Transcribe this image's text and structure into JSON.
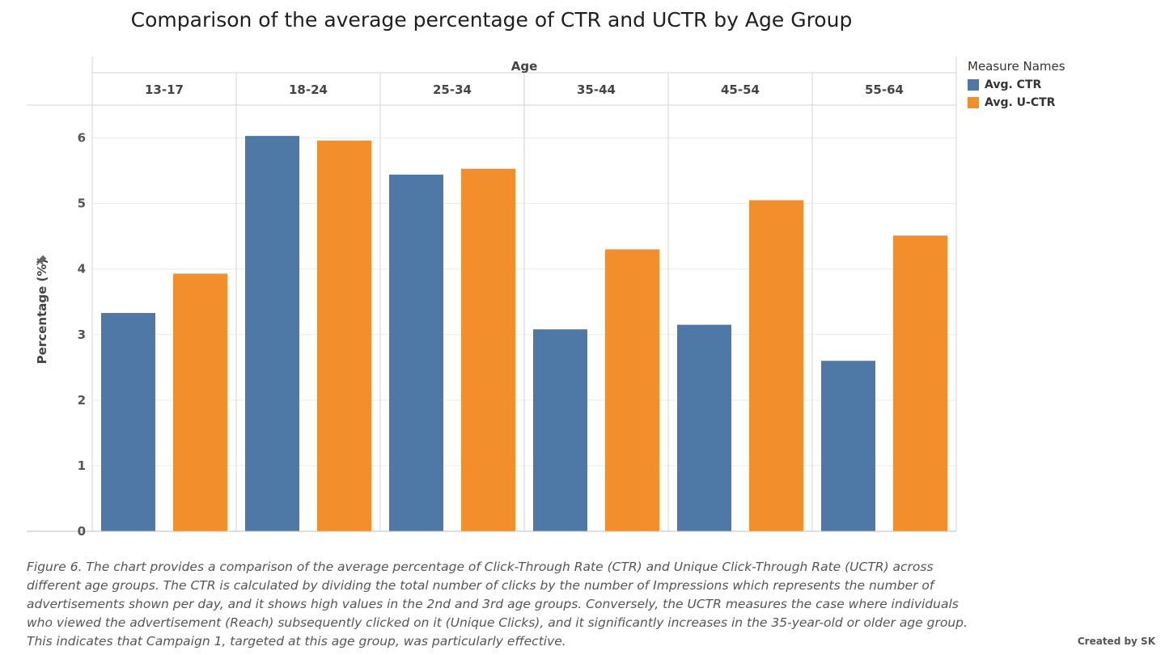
{
  "chart_data": {
    "type": "bar",
    "title": "Comparison of the average percentage of CTR and UCTR by Age Group",
    "column_header": "Age",
    "categories": [
      "13-17",
      "18-24",
      "25-34",
      "35-44",
      "45-54",
      "55-64"
    ],
    "series": [
      {
        "name": "Avg. CTR",
        "color": "#4e79a7",
        "values": [
          3.33,
          6.03,
          5.44,
          3.08,
          3.15,
          2.6
        ]
      },
      {
        "name": "Avg. U-CTR",
        "color": "#f28e2b",
        "values": [
          3.93,
          5.96,
          5.53,
          4.3,
          5.05,
          4.51
        ]
      }
    ],
    "ylabel": "Percentage (%)",
    "ylim": [
      0,
      6.5
    ],
    "yticks": [
      0,
      1,
      2,
      3,
      4,
      5,
      6
    ],
    "grid": true,
    "legend": {
      "title": "Measure Names",
      "placement": "right"
    }
  },
  "caption": "Figure 6. The chart provides a comparison of the average percentage of Click-Through Rate (CTR) and Unique Click-Through Rate (UCTR) across different age groups. The CTR is calculated by dividing the total number of clicks by the number of Impressions which represents the number of advertisements shown per day, and it shows high values in the 2nd and 3rd age groups. Conversely, the UCTR measures the case where individuals who viewed the advertisement (Reach) subsequently clicked on it (Unique Clicks), and it significantly increases in the 35-year-old or older age group. This indicates that Campaign 1, targeted at this age group, was particularly effective.",
  "credit": "Created by SK",
  "icons": {
    "axis_pin": "pin-icon"
  }
}
